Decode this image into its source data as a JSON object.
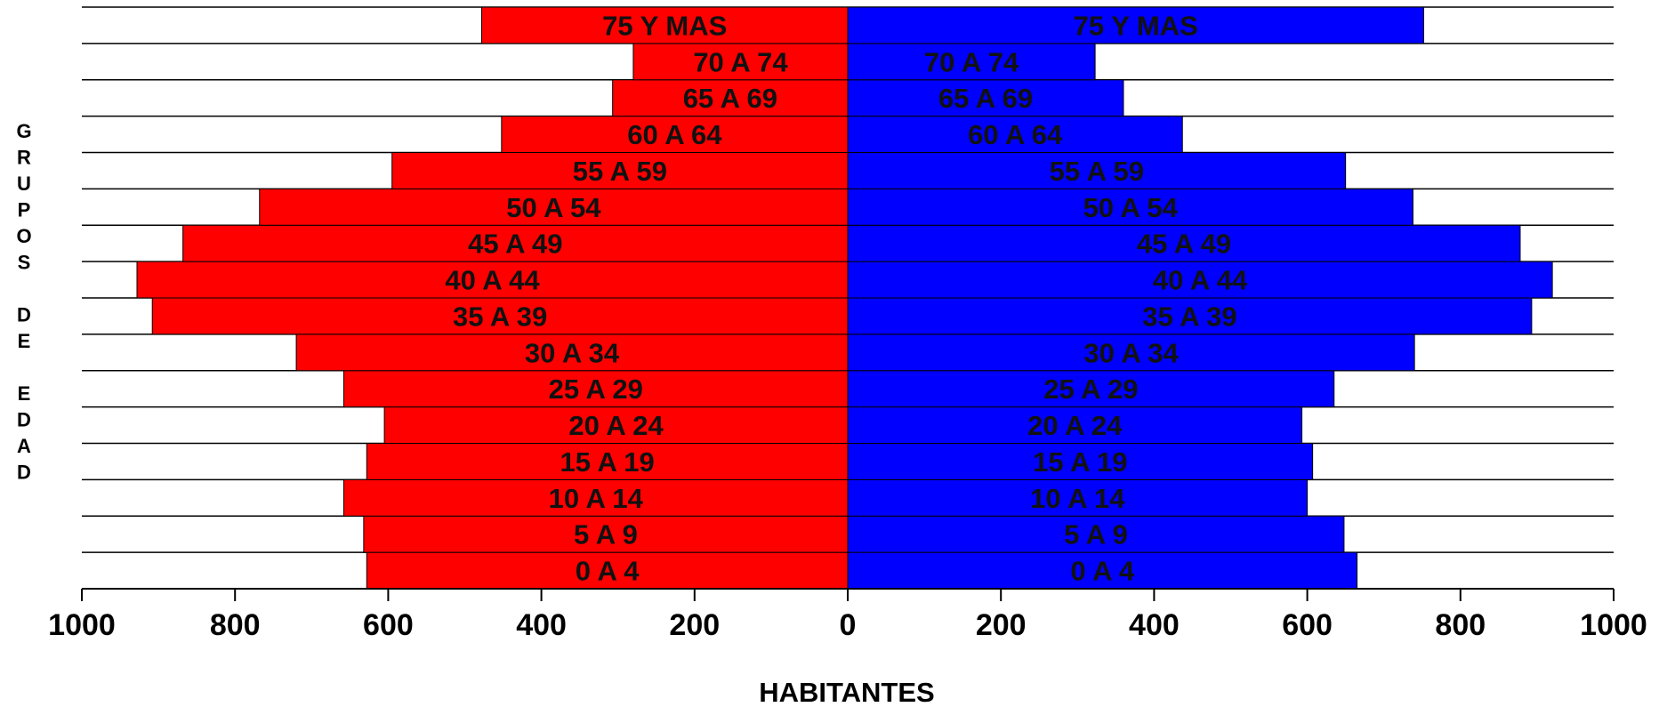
{
  "chart_data": {
    "type": "bar",
    "orientation": "horizontal",
    "layout": "population-pyramid",
    "categories": [
      "0  A  4",
      "5  A  9",
      "10 A 14",
      "15 A 19",
      "20 A 24",
      "25 A 29",
      "30 A 34",
      "35 A 39",
      "40 A 44",
      "45 A 49",
      "50 A 54",
      "55 A 59",
      "60 A 64",
      "65 A 69",
      "70 A 74",
      "75 Y MAS"
    ],
    "series": [
      {
        "side": "left",
        "color": "#ff0000",
        "values": [
          628,
          632,
          658,
          628,
          605,
          658,
          720,
          908,
          928,
          868,
          768,
          595,
          452,
          307,
          280,
          478
        ]
      },
      {
        "side": "right",
        "color": "#0000ff",
        "values": [
          665,
          648,
          600,
          607,
          593,
          635,
          740,
          893,
          920,
          878,
          738,
          650,
          437,
          360,
          323,
          752
        ]
      }
    ],
    "xlim": [
      -1000,
      1000
    ],
    "x_ticks": [
      -1000,
      -800,
      -600,
      -400,
      -200,
      0,
      200,
      400,
      600,
      800,
      1000
    ],
    "x_tick_labels": [
      "1000",
      "800",
      "600",
      "400",
      "200",
      "0",
      "200",
      "400",
      "600",
      "800",
      "1000"
    ],
    "xlabel": "HABITANTES",
    "ylabel": "GRUPOS DE EDAD",
    "grid": "horizontal"
  }
}
